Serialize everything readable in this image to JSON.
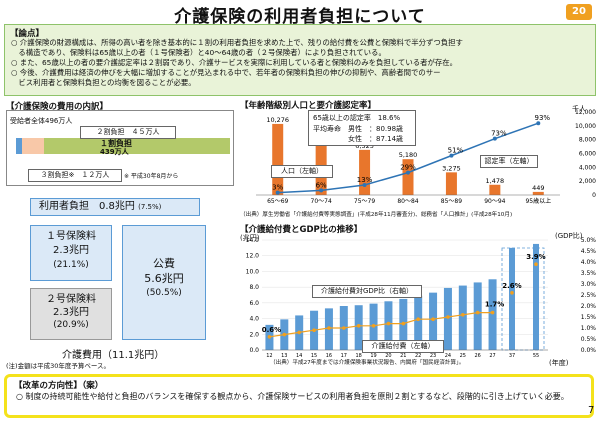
{
  "header": {
    "title": "介護保険の利用者負担について",
    "page_badge": "20"
  },
  "summary": {
    "heading": "【論点】",
    "bullets": [
      "○ 介護保険の財源構成は、所得の高い者を除き基本的に１割の利用者負担を求めた上で、残りの給付費を公費と保険料で半分ずつ負担す",
      "　る構造であり、保険料は65歳以上の者（１号保険者）と40〜64歳の者（２号保険者）により負担されている。",
      "○ また、65歳以上の者の要介護認定率は２割弱であり、介護サービスを実際に利用している者と保険料のみを負担している者が存在。",
      "○ 今後、介護費用は経済の伸びを大幅に増加することが見込まれる中で、若年者の保険料負担の伸びの抑制や、高齢者間でのサー",
      "　ビス利用者と保険料負担との均衡を図ることが必要。"
    ]
  },
  "cost_section": {
    "heading": "【介護保険の費用の内訳】",
    "users_label": "受給者全体496万人",
    "pct2_label": "２割負担　４５万人",
    "pct1_label": "１割負担",
    "pct1_count": "439万人",
    "pct3_label": "３割負担※　１２万人",
    "note": "※ 平成30年8月から",
    "user_burden_label": "利用者負担　0.8兆円",
    "user_burden_pct": "(7.5%)",
    "ins1_label": "１号保険料",
    "ins1_value": "2.3兆円",
    "ins1_pct": "(21.1%)",
    "ins2_label": "２号保険料",
    "ins2_value": "2.3兆円",
    "ins2_pct": "(20.9%)",
    "public_label": "公費",
    "public_value": "5.6兆円",
    "public_pct": "(50.5%)",
    "total": "介護費用（11.1兆円）",
    "footnote": "(注)金額は平成30年度予算ベース。"
  },
  "age_chart": {
    "heading": "【年齢階級別人口と要介護認定率】",
    "unit": "千人",
    "legend": [
      "65歳以上の認定率　18.6%",
      "平均寿命　男性　：80.98歳",
      "　　　　　女性　：87.14歳"
    ],
    "pop_label": "人口（左軸）",
    "rate_label": "認定率（左軸）",
    "source": "（出典）厚生労働省「介護給付費等実態調査」(平成28年11月審査分)、総務省「人口推計」(平成28年10月)",
    "y_ticks": [
      "12,000",
      "10,000",
      "8,000",
      "6,000",
      "4,000",
      "2,000",
      "0"
    ]
  },
  "gdp_chart": {
    "heading": "【介護給付費とGDP比の推移】",
    "y_unit": "(兆円)",
    "y2_unit": "(GDP比)",
    "y_ticks": [
      "14.0",
      "12.0",
      "10.0",
      "8.0",
      "6.0",
      "4.0",
      "2.0",
      "0.0"
    ],
    "y2_ticks": [
      "5.0%",
      "4.5%",
      "4.0%",
      "3.5%",
      "3.0%",
      "2.5%",
      "2.0%",
      "1.5%",
      "1.0%",
      "0.5%",
      "0.0%"
    ],
    "gdp_label": "介護給付費対GDP比（右軸）",
    "cost_label": "介護給付費（左軸）",
    "pct_start": "0.6%",
    "pct_end": "1.7%",
    "proj_pct1": "2.6%",
    "proj_pct2": "3.9%",
    "x_unit": "(年度)",
    "source": "（出典）平成27年度までは介護保険事業状況報告、内閣府「国民経済計算」。"
  },
  "direction": {
    "heading": "【改革の方向性】（案）",
    "text": "○ 制度の持続可能性や給付と負担のバランスを確保する観点から、介護保険サービスの利用者負担を原則２割とするなど、段階的に引き上げていく必要。",
    "page_num": "7"
  },
  "chart_data": [
    {
      "type": "bar",
      "title": "年齢階級別人口と要介護認定率",
      "categories": [
        "65〜69",
        "70〜74",
        "75〜79",
        "80〜84",
        "85〜89",
        "90〜94",
        "95歳以上"
      ],
      "series": [
        {
          "name": "人口（左軸）",
          "values": [
            10276,
            7407,
            6525,
            5180,
            3275,
            1478,
            449
          ]
        },
        {
          "name": "認定率（左軸）",
          "values": [
            3,
            6,
            13,
            29,
            51,
            73,
            93
          ]
        }
      ],
      "ylim": [
        0,
        12000
      ],
      "colors": {
        "bar": "#e8762c",
        "line": "#2e74b5"
      }
    },
    {
      "type": "bar",
      "title": "介護給付費とGDP比の推移",
      "categories": [
        "12",
        "13",
        "14",
        "15",
        "16",
        "17",
        "18",
        "19",
        "20",
        "21",
        "22",
        "23",
        "24",
        "25",
        "26",
        "27",
        "37",
        "55"
      ],
      "series": [
        {
          "name": "介護給付費（左軸）",
          "values": [
            3.2,
            3.9,
            4.4,
            5.0,
            5.3,
            5.6,
            5.7,
            5.9,
            6.2,
            6.5,
            6.9,
            7.3,
            7.9,
            8.2,
            8.6,
            9.0,
            13.0,
            13.5
          ]
        },
        {
          "name": "介護給付費対GDP比（右軸）",
          "values": [
            0.6,
            0.7,
            0.8,
            0.9,
            1.0,
            1.0,
            1.1,
            1.1,
            1.2,
            1.2,
            1.4,
            1.4,
            1.5,
            1.6,
            1.7,
            1.7,
            2.6,
            3.9
          ]
        }
      ],
      "ylim": [
        0,
        14
      ],
      "y2lim": [
        0,
        5
      ],
      "colors": {
        "bar": "#5b9bd5",
        "line": "#f0a020"
      }
    }
  ]
}
